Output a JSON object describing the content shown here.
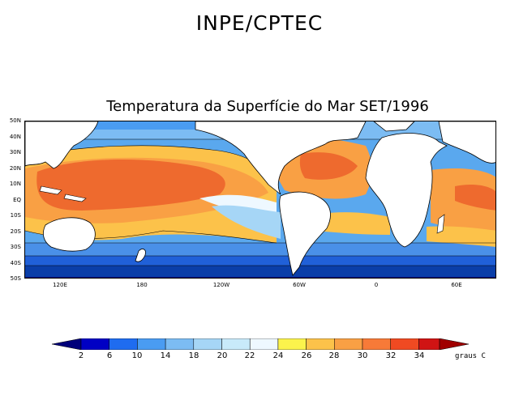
{
  "header": {
    "title": "INPE/CPTEC"
  },
  "map": {
    "title": "Temperatura da Superfície do Mar SET/1996",
    "lat_labels": [
      "50N",
      "40N",
      "30N",
      "20N",
      "10N",
      "EQ",
      "10S",
      "20S",
      "30S",
      "40S",
      "50S"
    ],
    "lon_labels": [
      "120E",
      "180",
      "120W",
      "60W",
      "0",
      "60E"
    ]
  },
  "legend": {
    "tick_labels": [
      "2",
      "6",
      "10",
      "14",
      "18",
      "20",
      "22",
      "24",
      "26",
      "28",
      "30",
      "32",
      "34"
    ],
    "unit": "graus C",
    "colors": [
      "#00007a",
      "#0000c4",
      "#1f6cf0",
      "#4a9cf2",
      "#7cbcf3",
      "#a6d6f6",
      "#c8eafa",
      "#eef8ff",
      "#fbf34c",
      "#fcc24a",
      "#f9a044",
      "#f77a38",
      "#f04a22",
      "#d01414",
      "#a00000"
    ]
  },
  "colors": {
    "land": "#ffffff",
    "coast": "#000000",
    "cold": "#0a3ea8",
    "warm": "#ee6a2e"
  }
}
